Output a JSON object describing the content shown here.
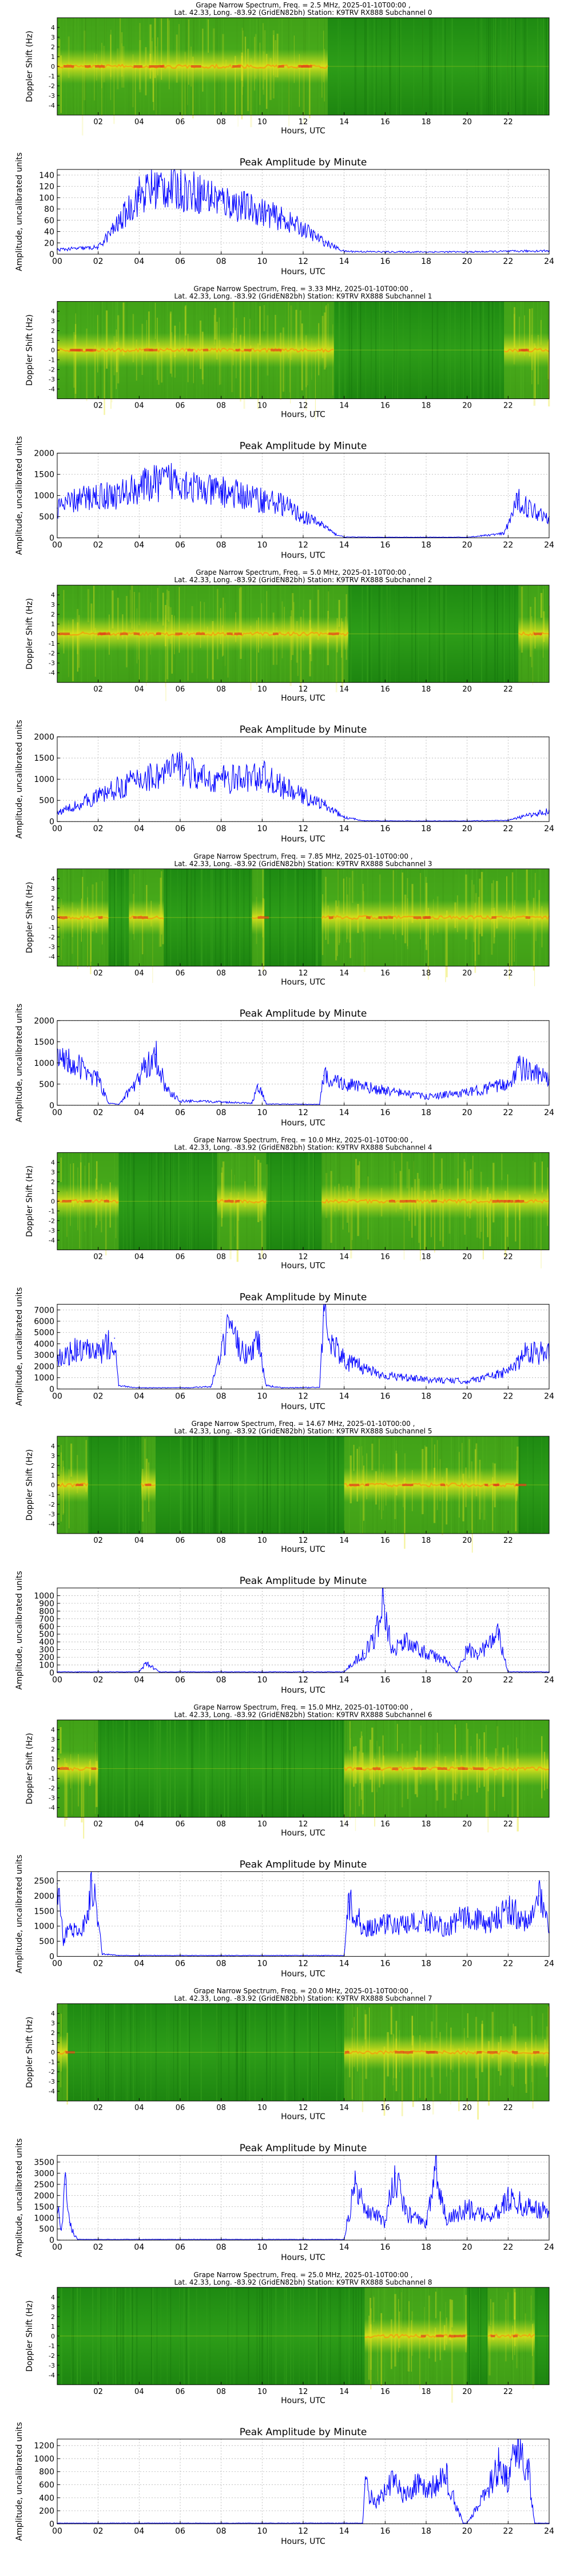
{
  "chart_data": [
    {
      "type": "heatmap",
      "title_line1": "Grape Narrow Spectrum, Freq. = 2.5 MHz, 2025-01-10T00:00 ,",
      "title_line2": "Lat. 42.33, Long. -83.92 (GridEN82bh) Station: K9TRV RX888 Subchannel 0",
      "xlabel": "Hours, UTC",
      "ylabel": "Doppler Shift (Hz)",
      "xticks": [
        "02",
        "04",
        "06",
        "08",
        "10",
        "12",
        "14",
        "16",
        "18",
        "20",
        "22"
      ],
      "yticks": [
        "4",
        "3",
        "2",
        "1",
        "0",
        "-1",
        "-2",
        "-3",
        "-4"
      ],
      "ylim": [
        -5,
        5
      ],
      "xlim": [
        0,
        24
      ],
      "colormap": "green-yellow-red",
      "active": [
        [
          0,
          13.2
        ]
      ]
    },
    {
      "type": "line",
      "title": "Peak Amplitude by Minute",
      "xlabel": "Hours, UTC",
      "ylabel": "Amplitude, uncalibrated units",
      "xlim": [
        0,
        24
      ],
      "ylim": [
        0,
        150
      ],
      "yticks": [
        0,
        20,
        40,
        60,
        80,
        100,
        120,
        140
      ],
      "xticks": [
        "00",
        "02",
        "04",
        "06",
        "08",
        "10",
        "12",
        "14",
        "16",
        "18",
        "20",
        "22",
        "24"
      ],
      "grid": true,
      "color": "#0000ff",
      "x": [
        0,
        1,
        2,
        3,
        4,
        5,
        6,
        7,
        8,
        9,
        10,
        11,
        12,
        13,
        14,
        16,
        18,
        20,
        22,
        24
      ],
      "y": [
        8,
        10,
        12,
        55,
        105,
        120,
        115,
        108,
        95,
        85,
        75,
        62,
        45,
        22,
        5,
        4,
        4,
        4,
        5,
        6
      ]
    },
    {
      "type": "heatmap",
      "title_line1": "Grape Narrow Spectrum, Freq. = 3.33 MHz, 2025-01-10T00:00 ,",
      "title_line2": "Lat. 42.33, Long. -83.92 (GridEN82bh) Station: K9TRV RX888 Subchannel 1",
      "xlabel": "Hours, UTC",
      "ylabel": "Doppler Shift (Hz)",
      "xticks": [
        "02",
        "04",
        "06",
        "08",
        "10",
        "12",
        "14",
        "16",
        "18",
        "20",
        "22"
      ],
      "yticks": [
        "4",
        "3",
        "2",
        "1",
        "0",
        "-1",
        "-2",
        "-3",
        "-4"
      ],
      "ylim": [
        -5,
        5
      ],
      "xlim": [
        0,
        24
      ],
      "colormap": "green-yellow-red",
      "active": [
        [
          0,
          13.5
        ],
        [
          21.8,
          24
        ]
      ]
    },
    {
      "type": "line",
      "title": "Peak Amplitude by Minute",
      "xlabel": "Hours, UTC",
      "ylabel": "Amplitude, uncalibrated units",
      "xlim": [
        0,
        24
      ],
      "ylim": [
        0,
        2000
      ],
      "yticks": [
        0,
        500,
        1000,
        1500,
        2000
      ],
      "xticks": [
        "00",
        "02",
        "04",
        "06",
        "08",
        "10",
        "12",
        "14",
        "16",
        "18",
        "20",
        "22",
        "24"
      ],
      "grid": true,
      "color": "#0000ff",
      "x": [
        0,
        1,
        2,
        3,
        4,
        5,
        6,
        7,
        8,
        9,
        10,
        11,
        12,
        13,
        13.5,
        14,
        16,
        18,
        20,
        21.8,
        22.5,
        23,
        24
      ],
      "y": [
        700,
        900,
        1000,
        1000,
        1200,
        1300,
        1400,
        1100,
        1100,
        1000,
        900,
        800,
        500,
        300,
        100,
        20,
        15,
        15,
        15,
        100,
        900,
        700,
        500
      ]
    },
    {
      "type": "heatmap",
      "title_line1": "Grape Narrow Spectrum, Freq. = 5.0 MHz, 2025-01-10T00:00 ,",
      "title_line2": "Lat. 42.33, Long. -83.92 (GridEN82bh) Station: K9TRV RX888 Subchannel 2",
      "xlabel": "Hours, UTC",
      "ylabel": "Doppler Shift (Hz)",
      "xticks": [
        "02",
        "04",
        "06",
        "08",
        "10",
        "12",
        "14",
        "16",
        "18",
        "20",
        "22"
      ],
      "yticks": [
        "4",
        "3",
        "2",
        "1",
        "0",
        "-1",
        "-2",
        "-3",
        "-4"
      ],
      "ylim": [
        -5,
        5
      ],
      "xlim": [
        0,
        24
      ],
      "colormap": "green-yellow-red",
      "active": [
        [
          0,
          14.2
        ],
        [
          22.5,
          24
        ]
      ]
    },
    {
      "type": "line",
      "title": "Peak Amplitude by Minute",
      "xlabel": "Hours, UTC",
      "ylabel": "Amplitude, uncalibrated units",
      "xlim": [
        0,
        24
      ],
      "ylim": [
        0,
        2000
      ],
      "yticks": [
        0,
        500,
        1000,
        1500,
        2000
      ],
      "xticks": [
        "00",
        "02",
        "04",
        "06",
        "08",
        "10",
        "12",
        "14",
        "16",
        "18",
        "20",
        "22",
        "24"
      ],
      "grid": true,
      "color": "#0000ff",
      "x": [
        0,
        1,
        2,
        3,
        4,
        5,
        6,
        7,
        8,
        9,
        10,
        11,
        12,
        13,
        14,
        15,
        16,
        18,
        20,
        22,
        23,
        24
      ],
      "y": [
        200,
        400,
        600,
        800,
        1000,
        1100,
        1300,
        1000,
        1000,
        1000,
        1100,
        800,
        600,
        400,
        100,
        20,
        15,
        15,
        15,
        30,
        150,
        250
      ]
    },
    {
      "type": "heatmap",
      "title_line1": "Grape Narrow Spectrum, Freq. = 7.85 MHz, 2025-01-10T00:00 ,",
      "title_line2": "Lat. 42.33, Long. -83.92 (GridEN82bh) Station: K9TRV RX888 Subchannel 3",
      "xlabel": "Hours, UTC",
      "ylabel": "Doppler Shift (Hz)",
      "xticks": [
        "02",
        "04",
        "06",
        "08",
        "10",
        "12",
        "14",
        "16",
        "18",
        "20",
        "22"
      ],
      "yticks": [
        "4",
        "3",
        "2",
        "1",
        "0",
        "-1",
        "-2",
        "-3",
        "-4"
      ],
      "ylim": [
        -5,
        5
      ],
      "xlim": [
        0,
        24
      ],
      "colormap": "green-yellow-red",
      "active": [
        [
          0,
          2.5
        ],
        [
          3.5,
          5.2
        ],
        [
          9.5,
          10.1
        ],
        [
          12.9,
          24
        ]
      ]
    },
    {
      "type": "line",
      "title": "Peak Amplitude by Minute",
      "xlabel": "Hours, UTC",
      "ylabel": "Amplitude, uncalibrated units",
      "xlim": [
        0,
        24
      ],
      "ylim": [
        0,
        2000
      ],
      "yticks": [
        0,
        500,
        1000,
        1500,
        2000
      ],
      "xticks": [
        "00",
        "02",
        "04",
        "06",
        "08",
        "10",
        "12",
        "14",
        "16",
        "18",
        "20",
        "22",
        "24"
      ],
      "grid": true,
      "color": "#0000ff",
      "x": [
        0,
        0.5,
        1,
        1.5,
        2,
        2.5,
        3,
        3.8,
        4.3,
        4.8,
        5.3,
        6,
        8,
        9.5,
        9.8,
        10.2,
        12.8,
        13,
        14,
        16,
        18,
        20,
        21,
        22,
        22.5,
        23,
        24
      ],
      "y": [
        1000,
        1100,
        900,
        800,
        600,
        50,
        20,
        500,
        900,
        1200,
        400,
        100,
        80,
        50,
        500,
        30,
        20,
        700,
        500,
        350,
        200,
        300,
        400,
        500,
        900,
        800,
        600
      ]
    },
    {
      "type": "heatmap",
      "title_line1": "Grape Narrow Spectrum, Freq. = 10.0 MHz, 2025-01-10T00:00 ,",
      "title_line2": "Lat. 42.33, Long. -83.92 (GridEN82bh) Station: K9TRV RX888 Subchannel 4",
      "xlabel": "Hours, UTC",
      "ylabel": "Doppler Shift (Hz)",
      "xticks": [
        "02",
        "04",
        "06",
        "08",
        "10",
        "12",
        "14",
        "16",
        "18",
        "20",
        "22"
      ],
      "yticks": [
        "4",
        "3",
        "2",
        "1",
        "0",
        "-1",
        "-2",
        "-3",
        "-4"
      ],
      "ylim": [
        -5,
        5
      ],
      "xlim": [
        0,
        24
      ],
      "colormap": "green-yellow-red",
      "active": [
        [
          0,
          3
        ],
        [
          7.8,
          10.2
        ],
        [
          12.9,
          24
        ]
      ]
    },
    {
      "type": "line",
      "title": "Peak Amplitude by Minute",
      "xlabel": "Hours, UTC",
      "ylabel": "Amplitude, uncalibrated units",
      "xlim": [
        0,
        24
      ],
      "ylim": [
        0,
        7500
      ],
      "yticks": [
        0,
        1000,
        2000,
        3000,
        4000,
        5000,
        6000,
        7000
      ],
      "xticks": [
        "00",
        "02",
        "04",
        "06",
        "08",
        "10",
        "12",
        "14",
        "16",
        "18",
        "20",
        "22",
        "24"
      ],
      "grid": true,
      "color": "#0000ff",
      "x": [
        0,
        1,
        2,
        2.8,
        3,
        4,
        6,
        7.5,
        8,
        8.3,
        8.8,
        9.2,
        9.8,
        10.2,
        11,
        12.8,
        13,
        13.5,
        14,
        16,
        18,
        20,
        22,
        23,
        24
      ],
      "y": [
        2500,
        3500,
        3000,
        4500,
        300,
        100,
        100,
        200,
        3000,
        5000,
        4000,
        3000,
        4500,
        300,
        100,
        150,
        6500,
        4000,
        2500,
        1200,
        800,
        700,
        1500,
        3500,
        3000
      ]
    },
    {
      "type": "heatmap",
      "title_line1": "Grape Narrow Spectrum, Freq. = 14.67 MHz, 2025-01-10T00:00 ,",
      "title_line2": "Lat. 42.33, Long. -83.92 (GridEN82bh) Station: K9TRV RX888 Subchannel 5",
      "xlabel": "Hours, UTC",
      "ylabel": "Doppler Shift (Hz)",
      "xticks": [
        "02",
        "04",
        "06",
        "08",
        "10",
        "12",
        "14",
        "16",
        "18",
        "20",
        "22"
      ],
      "yticks": [
        "4",
        "3",
        "2",
        "1",
        "0",
        "-1",
        "-2",
        "-3",
        "-4"
      ],
      "ylim": [
        -5,
        5
      ],
      "xlim": [
        0,
        24
      ],
      "colormap": "green-yellow-red",
      "active": [
        [
          0,
          1.5
        ],
        [
          4.1,
          4.8
        ],
        [
          14,
          22.5
        ]
      ]
    },
    {
      "type": "line",
      "title": "Peak Amplitude by Minute",
      "xlabel": "Hours, UTC",
      "ylabel": "Amplitude, uncalibrated units",
      "xlim": [
        0,
        24
      ],
      "ylim": [
        0,
        1100
      ],
      "yticks": [
        0,
        100,
        200,
        300,
        400,
        500,
        600,
        700,
        800,
        900,
        1000
      ],
      "xticks": [
        "00",
        "02",
        "04",
        "06",
        "08",
        "10",
        "12",
        "14",
        "16",
        "18",
        "20",
        "22",
        "24"
      ],
      "grid": true,
      "color": "#0000ff",
      "x": [
        0,
        1,
        4,
        4.3,
        4.6,
        5,
        10,
        14,
        14.5,
        15,
        15.5,
        15.9,
        16.3,
        17,
        18,
        19,
        19.5,
        20,
        20.5,
        21,
        21.5,
        22,
        24
      ],
      "y": [
        10,
        10,
        10,
        120,
        80,
        10,
        10,
        10,
        150,
        250,
        450,
        1000,
        300,
        400,
        250,
        150,
        10,
        300,
        250,
        350,
        500,
        10,
        10
      ]
    },
    {
      "type": "heatmap",
      "title_line1": "Grape Narrow Spectrum, Freq. = 15.0 MHz, 2025-01-10T00:00 ,",
      "title_line2": "Lat. 42.33, Long. -83.92 (GridEN82bh) Station: K9TRV RX888 Subchannel 6",
      "xlabel": "Hours, UTC",
      "ylabel": "Doppler Shift (Hz)",
      "xticks": [
        "02",
        "04",
        "06",
        "08",
        "10",
        "12",
        "14",
        "16",
        "18",
        "20",
        "22"
      ],
      "yticks": [
        "4",
        "3",
        "2",
        "1",
        "0",
        "-1",
        "-2",
        "-3",
        "-4"
      ],
      "ylim": [
        -5,
        5
      ],
      "xlim": [
        0,
        24
      ],
      "colormap": "green-yellow-red",
      "active": [
        [
          0,
          2
        ],
        [
          14,
          24
        ]
      ]
    },
    {
      "type": "line",
      "title": "Peak Amplitude by Minute",
      "xlabel": "Hours, UTC",
      "ylabel": "Amplitude, uncalibrated units",
      "xlim": [
        0,
        24
      ],
      "ylim": [
        0,
        2800
      ],
      "yticks": [
        0,
        500,
        1000,
        1500,
        2000,
        2500
      ],
      "xticks": [
        "00",
        "02",
        "04",
        "06",
        "08",
        "10",
        "12",
        "14",
        "16",
        "18",
        "20",
        "22",
        "24"
      ],
      "grid": true,
      "color": "#0000ff",
      "x": [
        0,
        0.3,
        0.6,
        1,
        1.5,
        1.7,
        2.2,
        3,
        8,
        13,
        14,
        14.2,
        15,
        16,
        17,
        18,
        19,
        20,
        21,
        22,
        23,
        23.5,
        24
      ],
      "y": [
        2400,
        500,
        1000,
        700,
        1500,
        2500,
        80,
        30,
        30,
        30,
        30,
        1800,
        900,
        1100,
        1000,
        1200,
        900,
        1400,
        1000,
        1600,
        1100,
        2000,
        800
      ]
    },
    {
      "type": "heatmap",
      "title_line1": "Grape Narrow Spectrum, Freq. = 20.0 MHz, 2025-01-10T00:00 ,",
      "title_line2": "Lat. 42.33, Long. -83.92 (GridEN82bh) Station: K9TRV RX888 Subchannel 7",
      "xlabel": "Hours, UTC",
      "ylabel": "Doppler Shift (Hz)",
      "xticks": [
        "02",
        "04",
        "06",
        "08",
        "10",
        "12",
        "14",
        "16",
        "18",
        "20",
        "22"
      ],
      "yticks": [
        "4",
        "3",
        "2",
        "1",
        "0",
        "-1",
        "-2",
        "-3",
        "-4"
      ],
      "ylim": [
        -5,
        5
      ],
      "xlim": [
        0,
        24
      ],
      "colormap": "green-yellow-red",
      "active": [
        [
          0,
          0.5
        ],
        [
          14,
          24
        ]
      ]
    },
    {
      "type": "line",
      "title": "Peak Amplitude by Minute",
      "xlabel": "Hours, UTC",
      "ylabel": "Amplitude, uncalibrated units",
      "xlim": [
        0,
        24
      ],
      "ylim": [
        0,
        3800
      ],
      "yticks": [
        0,
        500,
        1000,
        1500,
        2000,
        2500,
        3000,
        3500
      ],
      "xticks": [
        "00",
        "02",
        "04",
        "06",
        "08",
        "10",
        "12",
        "14",
        "16",
        "18",
        "20",
        "22",
        "24"
      ],
      "grid": true,
      "color": "#0000ff",
      "x": [
        0,
        0.2,
        0.4,
        0.6,
        0.8,
        1,
        5,
        10,
        14,
        14.5,
        15,
        16,
        16.5,
        17,
        18,
        18.5,
        19,
        20,
        21,
        22,
        23,
        24
      ],
      "y": [
        1500,
        500,
        2500,
        800,
        300,
        30,
        30,
        30,
        30,
        2500,
        1500,
        800,
        3000,
        1200,
        700,
        3200,
        900,
        1400,
        1000,
        1800,
        1500,
        1200
      ]
    },
    {
      "type": "heatmap",
      "title_line1": "Grape Narrow Spectrum, Freq. = 25.0 MHz, 2025-01-10T00:00 ,",
      "title_line2": "Lat. 42.33, Long. -83.92 (GridEN82bh) Station: K9TRV RX888 Subchannel 8",
      "xlabel": "Hours, UTC",
      "ylabel": "Doppler Shift (Hz)",
      "xticks": [
        "02",
        "04",
        "06",
        "08",
        "10",
        "12",
        "14",
        "16",
        "18",
        "20",
        "22"
      ],
      "yticks": [
        "4",
        "3",
        "2",
        "1",
        "0",
        "-1",
        "-2",
        "-3",
        "-4"
      ],
      "ylim": [
        -5,
        5
      ],
      "xlim": [
        0,
        24
      ],
      "colormap": "green-yellow-red",
      "active": [
        [
          15,
          20
        ],
        [
          21,
          23.3
        ]
      ]
    },
    {
      "type": "line",
      "title": "Peak Amplitude by Minute",
      "xlabel": "Hours, UTC",
      "ylabel": "Amplitude, uncalibrated units",
      "xlim": [
        0,
        24
      ],
      "ylim": [
        0,
        1300
      ],
      "yticks": [
        0,
        200,
        400,
        600,
        800,
        1000,
        1200
      ],
      "xticks": [
        "00",
        "02",
        "04",
        "06",
        "08",
        "10",
        "12",
        "14",
        "16",
        "18",
        "20",
        "22",
        "24"
      ],
      "grid": true,
      "color": "#0000ff",
      "x": [
        0,
        10,
        14.9,
        15,
        15.5,
        16,
        16.5,
        17,
        17.5,
        18,
        19,
        19.8,
        20,
        21,
        21.5,
        22,
        22.5,
        23,
        23.3,
        23.5,
        24
      ],
      "y": [
        10,
        10,
        10,
        600,
        300,
        500,
        700,
        400,
        600,
        500,
        700,
        10,
        10,
        500,
        900,
        700,
        1200,
        800,
        10,
        10,
        10
      ]
    }
  ]
}
